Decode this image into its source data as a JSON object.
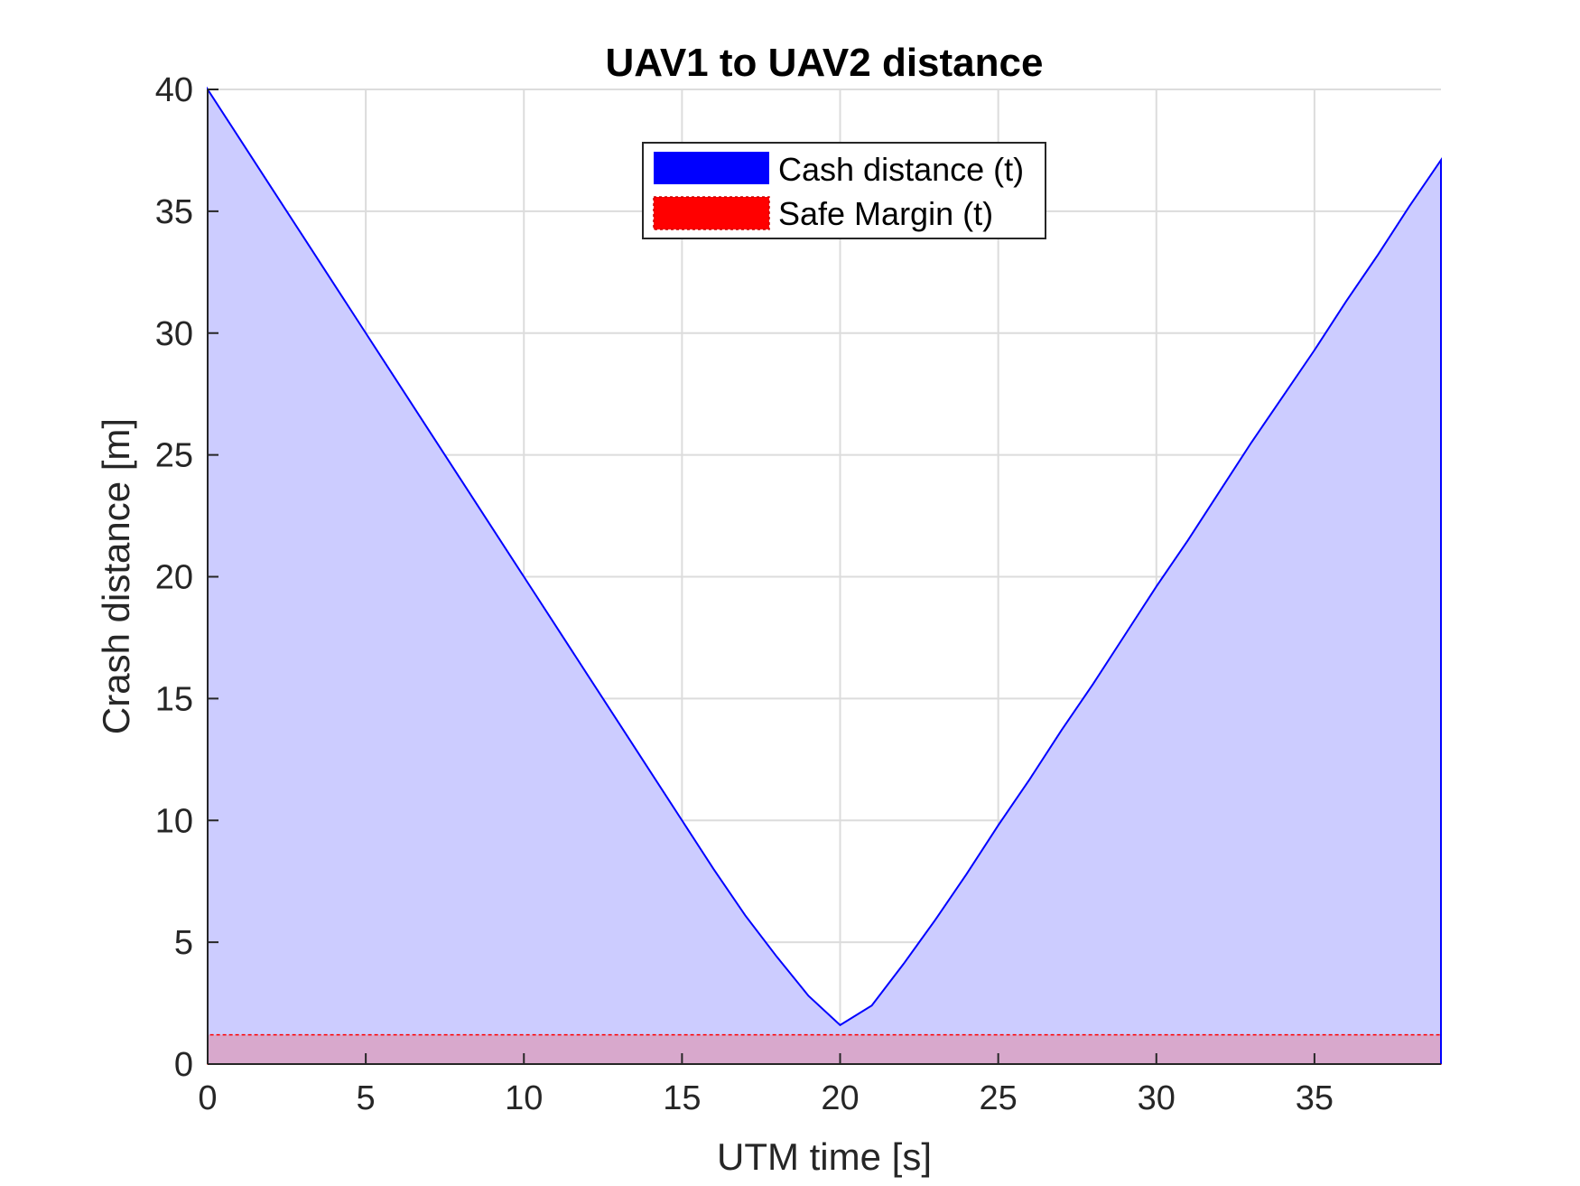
{
  "chart_data": {
    "type": "area",
    "title": "UAV1 to UAV2 distance",
    "xlabel": "UTM time [s]",
    "ylabel": "Crash distance [m]",
    "xlim": [
      0,
      39
    ],
    "ylim": [
      0,
      40
    ],
    "xticks": [
      0,
      5,
      10,
      15,
      20,
      25,
      30,
      35
    ],
    "yticks": [
      0,
      5,
      10,
      15,
      20,
      25,
      30,
      35,
      40
    ],
    "grid": true,
    "legend_position": "top-center",
    "series": [
      {
        "name": "Cash distance (t)",
        "color": "#0000ff",
        "fill": "#ccccff",
        "x": [
          0,
          1,
          2,
          3,
          4,
          5,
          6,
          7,
          8,
          9,
          10,
          11,
          12,
          13,
          14,
          15,
          16,
          17,
          18,
          19,
          20,
          21,
          22,
          23,
          24,
          25,
          26,
          27,
          28,
          29,
          30,
          31,
          32,
          33,
          34,
          35,
          36,
          37,
          38,
          39
        ],
        "values": [
          40,
          38,
          36,
          34,
          32,
          30,
          28,
          26,
          24,
          22,
          20,
          18,
          16,
          14,
          12,
          10,
          8,
          6.1,
          4.4,
          2.8,
          1.6,
          2.4,
          4.1,
          5.9,
          7.8,
          9.8,
          11.7,
          13.7,
          15.6,
          17.6,
          19.6,
          21.5,
          23.5,
          25.5,
          27.4,
          29.3,
          31.3,
          33.2,
          35.2,
          37.1
        ]
      },
      {
        "name": "Safe Margin (t)",
        "color": "#ff0000",
        "fill": "#d8a8cc",
        "x": [
          0,
          39
        ],
        "values": [
          1.2,
          1.2
        ]
      }
    ]
  }
}
